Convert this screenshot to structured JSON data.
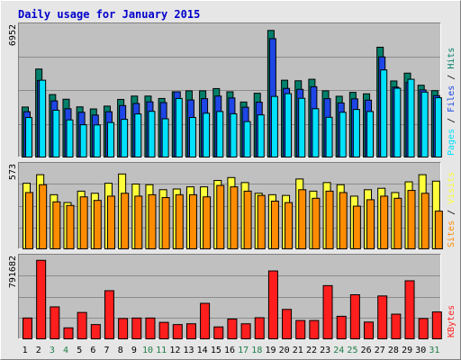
{
  "colors": {
    "background": "#E6E6E6",
    "panel": "#C0C0C0",
    "title": "#0000CC",
    "grid": "#8C8C8C",
    "pages": "#00E1FF",
    "files": "#1E46E6",
    "hits": "#00806B",
    "visits": "#FFFF3C",
    "sites": "#FF8C00",
    "kbytes": "#FF1E1E",
    "weekend_label": "#1E7E46",
    "weekday_label": "#000000"
  },
  "chart_data": [
    {
      "type": "bar",
      "title": "Daily usage for January 2015",
      "categories": [
        "1",
        "2",
        "3",
        "4",
        "5",
        "6",
        "7",
        "8",
        "9",
        "10",
        "11",
        "12",
        "13",
        "14",
        "15",
        "16",
        "17",
        "18",
        "19",
        "20",
        "21",
        "22",
        "23",
        "24",
        "25",
        "26",
        "27",
        "28",
        "29",
        "30",
        "31"
      ],
      "weekend_days": [
        "3",
        "4",
        "10",
        "11",
        "17",
        "18",
        "24",
        "25",
        "31"
      ],
      "ylabel": [
        "Pages",
        "Files",
        "Hits"
      ],
      "ymax_label": "6952",
      "ylim": [
        0,
        6952
      ],
      "series": [
        {
          "name": "Hits",
          "values": [
            2730,
            4770,
            3400,
            3150,
            2740,
            2630,
            2780,
            3140,
            3320,
            3320,
            3190,
            3550,
            3600,
            3600,
            3720,
            3550,
            3000,
            3470,
            6840,
            4170,
            4140,
            4220,
            3600,
            3310,
            3520,
            3440,
            5940,
            4130,
            4550,
            3900,
            3610
          ]
        },
        {
          "name": "Files",
          "values": [
            2480,
            4150,
            3060,
            2640,
            2450,
            2300,
            2480,
            2810,
            2920,
            3010,
            2970,
            3550,
            3110,
            3180,
            3320,
            3220,
            2720,
            2990,
            6400,
            3730,
            3680,
            3820,
            3180,
            2950,
            3170,
            3100,
            5420,
            3800,
            4050,
            3650,
            3340
          ]
        },
        {
          "name": "Pages",
          "values": [
            2170,
            4170,
            2560,
            2040,
            1780,
            1770,
            1900,
            2070,
            2360,
            2500,
            2100,
            3190,
            2170,
            2400,
            2490,
            2370,
            1950,
            2310,
            3300,
            3450,
            3200,
            2640,
            2180,
            2450,
            2600,
            2490,
            4720,
            3740,
            4220,
            3530,
            3230
          ]
        }
      ]
    },
    {
      "type": "bar",
      "categories": [
        "1",
        "2",
        "3",
        "4",
        "5",
        "6",
        "7",
        "8",
        "9",
        "10",
        "11",
        "12",
        "13",
        "14",
        "15",
        "16",
        "17",
        "18",
        "19",
        "20",
        "21",
        "22",
        "23",
        "24",
        "25",
        "26",
        "27",
        "28",
        "29",
        "30",
        "31"
      ],
      "ylabel": [
        "Sites",
        "Visits"
      ],
      "ymax_label": "573",
      "ylim": [
        0,
        573
      ],
      "series": [
        {
          "name": "Visits",
          "values": [
            465,
            525,
            385,
            330,
            410,
            395,
            465,
            530,
            460,
            455,
            420,
            425,
            440,
            440,
            485,
            505,
            470,
            395,
            385,
            380,
            495,
            410,
            470,
            455,
            375,
            420,
            430,
            400,
            475,
            525,
            480
          ]
        },
        {
          "name": "Sites",
          "values": [
            400,
            455,
            335,
            310,
            370,
            345,
            375,
            395,
            375,
            385,
            365,
            385,
            385,
            370,
            450,
            440,
            410,
            380,
            340,
            330,
            420,
            360,
            410,
            400,
            305,
            350,
            375,
            360,
            415,
            395,
            270
          ]
        }
      ]
    },
    {
      "type": "bar",
      "categories": [
        "1",
        "2",
        "3",
        "4",
        "5",
        "6",
        "7",
        "8",
        "9",
        "10",
        "11",
        "12",
        "13",
        "14",
        "15",
        "16",
        "17",
        "18",
        "19",
        "20",
        "21",
        "22",
        "23",
        "24",
        "25",
        "26",
        "27",
        "28",
        "29",
        "30",
        "31"
      ],
      "ylabel": [
        "KBytes"
      ],
      "ymax_label": "791682",
      "ylim": [
        0,
        791682
      ],
      "series": [
        {
          "name": "KBytes",
          "values": [
            215000,
            785000,
            325000,
            118000,
            270000,
            150000,
            485000,
            210000,
            215000,
            215000,
            172000,
            150000,
            158000,
            360000,
            127000,
            205000,
            158000,
            218000,
            680000,
            300000,
            190000,
            190000,
            535000,
            232000,
            445000,
            175000,
            433000,
            253000,
            583000,
            210000,
            275000
          ]
        }
      ]
    }
  ]
}
